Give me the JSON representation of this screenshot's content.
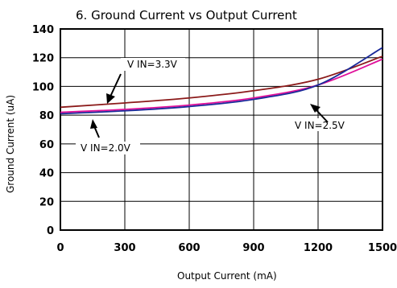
{
  "chart_data": {
    "type": "line",
    "title": "6. Ground Current vs Output Current",
    "xlabel": "Output Current (mA)",
    "ylabel": "Ground Current (uA)",
    "xlim": [
      0,
      1500
    ],
    "ylim": [
      0,
      140
    ],
    "xticks": [
      "0",
      "300",
      "600",
      "900",
      "1200",
      "1500"
    ],
    "yticks": [
      "0",
      "20",
      "40",
      "60",
      "80",
      "100",
      "120",
      "140"
    ],
    "grid": true,
    "x": [
      0,
      300,
      600,
      900,
      1200,
      1500
    ],
    "series": [
      {
        "name": "V IN=3.3V",
        "color": "#8b1a1a",
        "values": [
          85.5,
          88.5,
          92,
          97,
          105,
          121
        ]
      },
      {
        "name": "V IN=2.5V",
        "color": "#e0109a",
        "values": [
          82,
          84,
          87,
          92,
          101,
          119
        ]
      },
      {
        "name": "V IN=2.0V",
        "color": "#1a2a9a",
        "values": [
          81,
          83,
          86,
          91,
          101,
          127
        ]
      }
    ],
    "annotations": [
      {
        "text": "V IN=3.3V"
      },
      {
        "text": "V IN=2.5V"
      },
      {
        "text": "V IN=2.0V"
      }
    ]
  }
}
